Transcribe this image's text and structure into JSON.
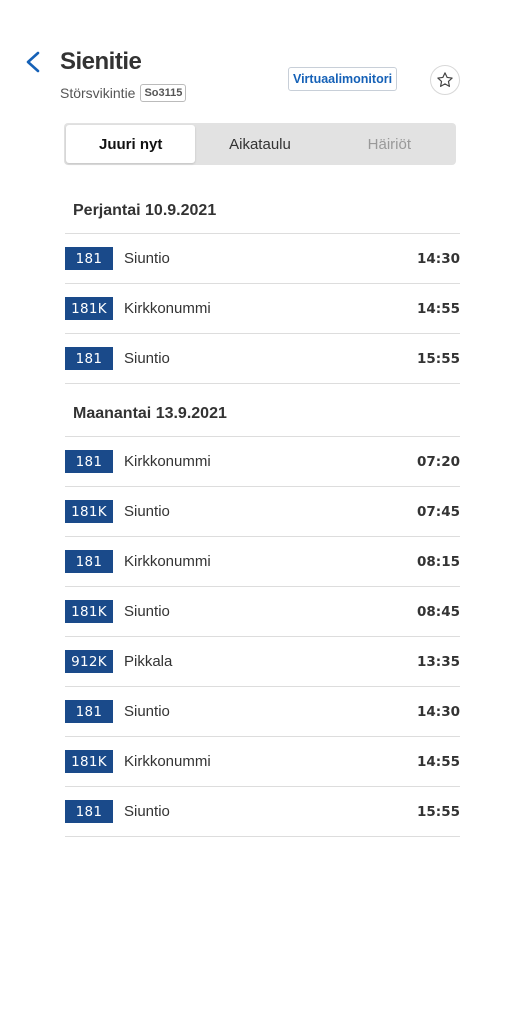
{
  "header": {
    "title": "Sienitie",
    "subtitle": "Störsvikintie",
    "stop_code": "So3115",
    "virtual_monitor_label": "Virtuaalimonitori"
  },
  "tabs": [
    {
      "label": "Juuri nyt"
    },
    {
      "label": "Aikataulu"
    },
    {
      "label": "Häiriöt"
    }
  ],
  "sections": [
    {
      "date": "Perjantai 10.9.2021",
      "departures": [
        {
          "route": "181",
          "destination": "Siuntio",
          "time": "14:30"
        },
        {
          "route": "181K",
          "destination": "Kirkkonummi",
          "time": "14:55"
        },
        {
          "route": "181",
          "destination": "Siuntio",
          "time": "15:55"
        }
      ]
    },
    {
      "date": "Maanantai 13.9.2021",
      "departures": [
        {
          "route": "181",
          "destination": "Kirkkonummi",
          "time": "07:20"
        },
        {
          "route": "181K",
          "destination": "Siuntio",
          "time": "07:45"
        },
        {
          "route": "181",
          "destination": "Kirkkonummi",
          "time": "08:15"
        },
        {
          "route": "181K",
          "destination": "Siuntio",
          "time": "08:45"
        },
        {
          "route": "912K",
          "destination": "Pikkala",
          "time": "13:35"
        },
        {
          "route": "181",
          "destination": "Siuntio",
          "time": "14:30"
        },
        {
          "route": "181K",
          "destination": "Kirkkonummi",
          "time": "14:55"
        },
        {
          "route": "181",
          "destination": "Siuntio",
          "time": "15:55"
        }
      ]
    }
  ],
  "colors": {
    "route_badge": "#1a4a8a",
    "accent": "#1561b7"
  }
}
